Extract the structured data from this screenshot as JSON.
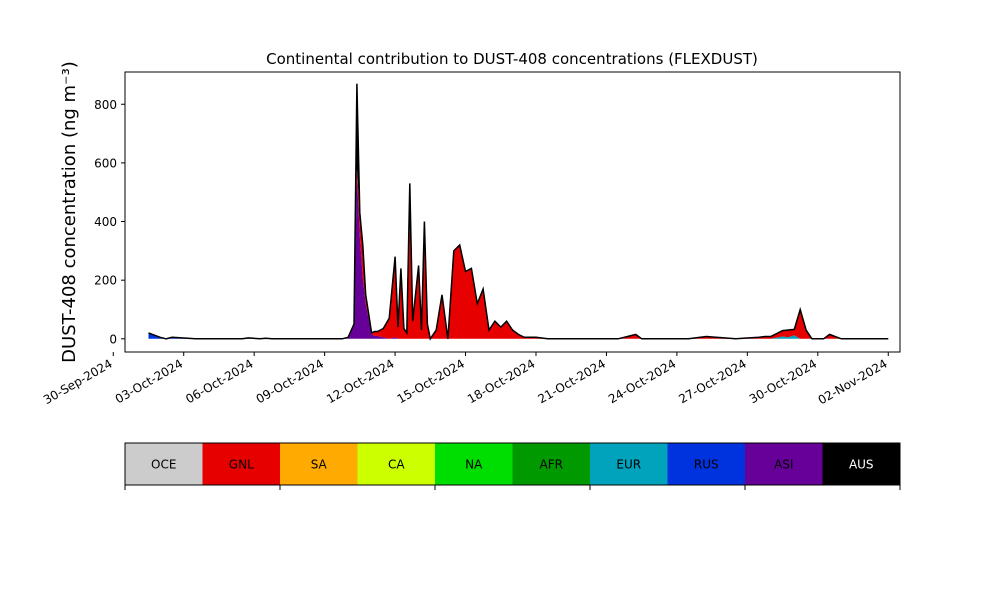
{
  "chart_data": {
    "type": "area",
    "stacked": true,
    "title": "Continental contribution to DUST-408 concentrations (FLEXDUST)",
    "xlabel": "",
    "ylabel": "DUST-408 concentration (ng m⁻³)",
    "ylim": [
      -45,
      910
    ],
    "xlim": [
      "2024-09-30T12:00",
      "2024-11-02T12:00"
    ],
    "yticks": [
      0,
      200,
      400,
      600,
      800
    ],
    "xticks": [
      "2024-09-30",
      "2024-10-03",
      "2024-10-06",
      "2024-10-09",
      "2024-10-12",
      "2024-10-15",
      "2024-10-18",
      "2024-10-21",
      "2024-10-24",
      "2024-10-27",
      "2024-10-30",
      "2024-11-02"
    ],
    "xtick_labels": [
      "30-Sep-2024",
      "03-Oct-2024",
      "06-Oct-2024",
      "09-Oct-2024",
      "12-Oct-2024",
      "15-Oct-2024",
      "18-Oct-2024",
      "21-Oct-2024",
      "24-Oct-2024",
      "27-Oct-2024",
      "30-Oct-2024",
      "02-Nov-2024"
    ],
    "grid": false,
    "legend": {
      "placement": "bottom",
      "entries": [
        {
          "label": "OCE",
          "color": "#cccccc",
          "text_color": "#000000"
        },
        {
          "label": "GNL",
          "color": "#e60000",
          "text_color": "#000000"
        },
        {
          "label": "SA",
          "color": "#ffaa00",
          "text_color": "#000000"
        },
        {
          "label": "CA",
          "color": "#ccff00",
          "text_color": "#000000"
        },
        {
          "label": "NA",
          "color": "#00dd00",
          "text_color": "#000000"
        },
        {
          "label": "AFR",
          "color": "#009900",
          "text_color": "#000000"
        },
        {
          "label": "EUR",
          "color": "#00a3bb",
          "text_color": "#000000"
        },
        {
          "label": "RUS",
          "color": "#0033dd",
          "text_color": "#000000"
        },
        {
          "label": "ASI",
          "color": "#660099",
          "text_color": "#000000"
        },
        {
          "label": "AUS",
          "color": "#000000",
          "text_color": "#ffffff"
        }
      ]
    },
    "x": [
      "2024-10-01T12:00",
      "2024-10-02T00:00",
      "2024-10-02T06:00",
      "2024-10-02T12:00",
      "2024-10-03T12:00",
      "2024-10-05T12:00",
      "2024-10-05T18:00",
      "2024-10-06T06:00",
      "2024-10-06T12:00",
      "2024-10-06T18:00",
      "2024-10-07T12:00",
      "2024-10-09T12:00",
      "2024-10-09T18:00",
      "2024-10-10T00:00",
      "2024-10-10T06:00",
      "2024-10-10T09:00",
      "2024-10-10T12:00",
      "2024-10-10T15:00",
      "2024-10-10T18:00",
      "2024-10-11T00:00",
      "2024-10-11T03:00",
      "2024-10-11T06:00",
      "2024-10-11T12:00",
      "2024-10-11T18:00",
      "2024-10-12T00:00",
      "2024-10-12T03:00",
      "2024-10-12T06:00",
      "2024-10-12T09:00",
      "2024-10-12T12:00",
      "2024-10-12T15:00",
      "2024-10-12T18:00",
      "2024-10-13T00:00",
      "2024-10-13T03:00",
      "2024-10-13T06:00",
      "2024-10-13T09:00",
      "2024-10-13T12:00",
      "2024-10-13T18:00",
      "2024-10-14T00:00",
      "2024-10-14T06:00",
      "2024-10-14T12:00",
      "2024-10-14T18:00",
      "2024-10-15T00:00",
      "2024-10-15T06:00",
      "2024-10-15T12:00",
      "2024-10-15T18:00",
      "2024-10-16T00:00",
      "2024-10-16T06:00",
      "2024-10-16T12:00",
      "2024-10-16T18:00",
      "2024-10-17T00:00",
      "2024-10-17T06:00",
      "2024-10-17T12:00",
      "2024-10-18T00:00",
      "2024-10-18T12:00",
      "2024-10-19T12:00",
      "2024-10-20T12:00",
      "2024-10-21T12:00",
      "2024-10-22T00:00",
      "2024-10-22T06:00",
      "2024-10-22T12:00",
      "2024-10-23T12:00",
      "2024-10-24T12:00",
      "2024-10-25T00:00",
      "2024-10-25T06:00",
      "2024-10-26T12:00",
      "2024-10-27T12:00",
      "2024-10-27T18:00",
      "2024-10-28T00:00",
      "2024-10-28T12:00",
      "2024-10-28T18:00",
      "2024-10-29T00:00",
      "2024-10-29T06:00",
      "2024-10-29T12:00",
      "2024-10-29T18:00",
      "2024-10-30T00:00",
      "2024-10-30T06:00",
      "2024-10-30T12:00",
      "2024-10-31T00:00",
      "2024-10-31T06:00",
      "2024-10-31T12:00",
      "2024-11-01T12:00",
      "2024-11-02T00:00"
    ],
    "series": [
      {
        "name": "RUS",
        "values": [
          20,
          5,
          0,
          5,
          0,
          0,
          3,
          0,
          2,
          0,
          0,
          0,
          0,
          0,
          0,
          0,
          0,
          0,
          0,
          0,
          0,
          0,
          0,
          0,
          0,
          0,
          0,
          0,
          0,
          0,
          0,
          0,
          0,
          0,
          0,
          0,
          0,
          0,
          0,
          0,
          0,
          0,
          0,
          0,
          0,
          0,
          0,
          0,
          0,
          0,
          0,
          0,
          0,
          0,
          0,
          0,
          0,
          0,
          0,
          0,
          0,
          0,
          0,
          0,
          0,
          0,
          0,
          0,
          0,
          0,
          0,
          0,
          0,
          0,
          0,
          0,
          0,
          0,
          0,
          0,
          0,
          0
        ]
      },
      {
        "name": "EUR",
        "values": [
          0,
          0,
          0,
          0,
          0,
          0,
          0,
          0,
          0,
          0,
          0,
          0,
          0,
          0,
          0,
          0,
          0,
          0,
          0,
          0,
          0,
          0,
          0,
          0,
          0,
          0,
          0,
          0,
          0,
          0,
          0,
          0,
          0,
          0,
          0,
          0,
          0,
          0,
          0,
          0,
          0,
          0,
          0,
          0,
          0,
          0,
          0,
          0,
          0,
          0,
          0,
          0,
          0,
          0,
          0,
          0,
          0,
          0,
          0,
          0,
          0,
          0,
          0,
          0,
          0,
          0,
          0,
          0,
          8,
          5,
          12,
          0,
          0,
          0,
          0,
          0,
          0,
          0,
          0,
          0,
          0,
          0
        ]
      },
      {
        "name": "ASI",
        "values": [
          0,
          0,
          0,
          0,
          0,
          0,
          0,
          0,
          0,
          0,
          0,
          0,
          0,
          5,
          50,
          560,
          350,
          210,
          120,
          15,
          10,
          10,
          5,
          0,
          5,
          0,
          0,
          0,
          0,
          0,
          0,
          0,
          0,
          0,
          0,
          0,
          0,
          0,
          0,
          0,
          0,
          0,
          0,
          0,
          0,
          0,
          0,
          0,
          0,
          0,
          0,
          0,
          0,
          0,
          0,
          0,
          0,
          0,
          0,
          0,
          0,
          0,
          0,
          0,
          0,
          0,
          0,
          0,
          0,
          0,
          0,
          0,
          0,
          0,
          0,
          0,
          0,
          0,
          0,
          0,
          0,
          0
        ]
      },
      {
        "name": "GNL",
        "values": [
          0,
          0,
          0,
          0,
          0,
          0,
          0,
          0,
          0,
          0,
          0,
          0,
          0,
          0,
          0,
          20,
          80,
          110,
          30,
          5,
          15,
          15,
          30,
          70,
          275,
          40,
          240,
          35,
          20,
          380,
          60,
          250,
          30,
          400,
          50,
          0,
          30,
          150,
          0,
          300,
          320,
          230,
          240,
          120,
          170,
          30,
          60,
          40,
          60,
          30,
          15,
          5,
          5,
          0,
          0,
          0,
          0,
          10,
          15,
          0,
          0,
          0,
          5,
          8,
          0,
          5,
          8,
          8,
          20,
          25,
          20,
          100,
          30,
          0,
          0,
          0,
          15,
          0,
          0,
          0,
          0,
          0
        ]
      },
      {
        "name": "AUS",
        "values": [
          0,
          0,
          0,
          0,
          0,
          0,
          0,
          0,
          0,
          0,
          0,
          0,
          0,
          0,
          0,
          290,
          0,
          0,
          0,
          0,
          0,
          0,
          0,
          0,
          0,
          0,
          0,
          0,
          0,
          150,
          0,
          0,
          0,
          0,
          0,
          0,
          0,
          0,
          0,
          0,
          0,
          0,
          0,
          0,
          0,
          0,
          0,
          0,
          0,
          0,
          0,
          0,
          0,
          0,
          0,
          0,
          0,
          0,
          0,
          0,
          0,
          0,
          0,
          0,
          0,
          0,
          0,
          0,
          0,
          0,
          0,
          0,
          0,
          0,
          0,
          0,
          0,
          0,
          0,
          0,
          0,
          0
        ]
      }
    ]
  }
}
